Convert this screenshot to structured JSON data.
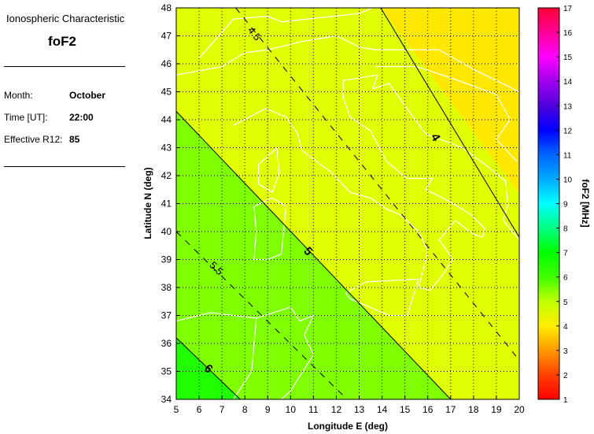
{
  "panel": {
    "title": "Ionospheric Characteristic",
    "characteristic": "foF2",
    "month_label": "Month:",
    "month": "October",
    "time_label": "Time [UT]:",
    "time": "22:00",
    "r12_label": "Effective R12:",
    "r12": "85"
  },
  "map": {
    "xlabel": "Longitude E (deg)",
    "ylabel": "Latitude N (deg)",
    "xlim": [
      5,
      20
    ],
    "ylim": [
      34,
      48
    ],
    "xticks": [
      "5",
      "6",
      "7",
      "8",
      "9",
      "10",
      "11",
      "12",
      "13",
      "14",
      "15",
      "16",
      "17",
      "18",
      "19",
      "20"
    ],
    "yticks": [
      "34",
      "35",
      "36",
      "37",
      "38",
      "39",
      "40",
      "41",
      "42",
      "43",
      "44",
      "45",
      "46",
      "47",
      "48"
    ],
    "grid": true,
    "contours": [
      {
        "level": "4",
        "style": "solid",
        "from": [
          13.94,
          48
        ],
        "to": [
          20,
          39.8
        ],
        "label_at": [
          16.2,
          43.3
        ]
      },
      {
        "level": "4.5",
        "style": "dashed",
        "from": [
          7.6,
          48
        ],
        "to": [
          20,
          35.4
        ],
        "label_at": [
          8.3,
          47.0
        ]
      },
      {
        "level": "5",
        "style": "solid",
        "from": [
          5,
          44.3
        ],
        "to": [
          17.0,
          34
        ],
        "label_at": [
          10.65,
          39.2
        ]
      },
      {
        "level": "5.5",
        "style": "dashed",
        "from": [
          5,
          40.0
        ],
        "to": [
          12.47,
          34
        ],
        "label_at": [
          6.65,
          38.6
        ]
      },
      {
        "level": "6",
        "style": "solid",
        "from": [
          5,
          36.2
        ],
        "to": [
          7.8,
          34
        ],
        "label_at": [
          6.3,
          35.0
        ]
      }
    ],
    "region_colors": {
      "below_4": "#ffe800",
      "4_to_5": "#e0ff00",
      "5_to_6": "#80ff00",
      "above_6": "#20ff00"
    },
    "coast_color": "#ffffff"
  },
  "colorbar": {
    "label": "foF2 [MHz]",
    "range": [
      1,
      17
    ],
    "ticks": [
      "1",
      "2",
      "3",
      "4",
      "5",
      "6",
      "7",
      "8",
      "9",
      "10",
      "11",
      "12",
      "13",
      "14",
      "15",
      "16",
      "17"
    ],
    "colors": [
      "#ff0000",
      "#ff4000",
      "#ff9900",
      "#ffee00",
      "#c0ff00",
      "#40ff00",
      "#00ff00",
      "#00ff80",
      "#00ffff",
      "#00aaff",
      "#0066ff",
      "#0000ff",
      "#5000dd",
      "#a000ee",
      "#ff00ff",
      "#ff0099",
      "#ff0033"
    ]
  }
}
